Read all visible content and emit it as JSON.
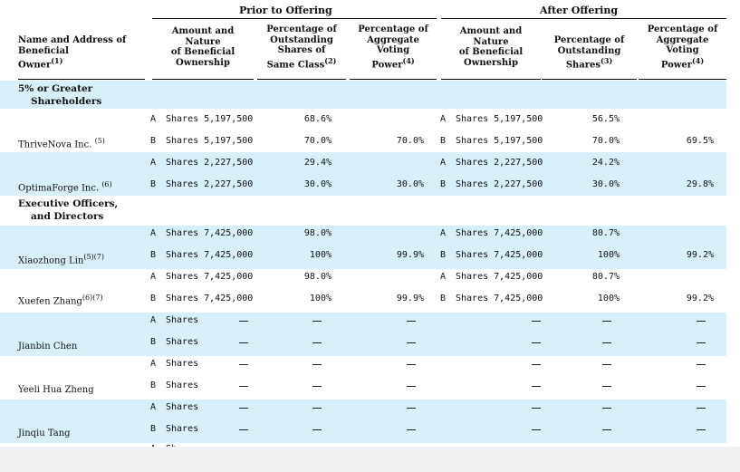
{
  "header": {
    "prior_title": "Prior to Offering",
    "after_title": "After Offering",
    "name_col": [
      "Name and Address of",
      "Beneficial",
      "Owner"
    ],
    "name_sup": "(1)",
    "prior_amount": [
      "Amount and",
      "Nature",
      "of Beneficial",
      "Ownership"
    ],
    "prior_pct_outstanding": [
      "Percentage of",
      "Outstanding",
      "Shares of",
      "Same Class"
    ],
    "prior_pct_outstanding_sup": "(2)",
    "prior_pct_voting": [
      "Percentage of",
      "Aggregate",
      "Voting",
      "Power"
    ],
    "prior_pct_voting_sup": "(4)",
    "after_amount": [
      "Amount and",
      "Nature",
      "of Beneficial",
      "Ownership"
    ],
    "after_pct_outstanding": [
      "Percentage of",
      "Outstanding",
      "Shares"
    ],
    "after_pct_outstanding_sup": "(3)",
    "after_pct_voting": [
      "Percentage of",
      "Aggregate",
      "Voting",
      "Power"
    ],
    "after_pct_voting_sup": "(4)"
  },
  "sections": {
    "greater": [
      "5% or Greater",
      "Shareholders"
    ],
    "officers": [
      "Executive Officers,",
      "and Directors"
    ]
  },
  "holders": [
    {
      "name": "ThriveNova Inc.",
      "sup": "(5)",
      "a": {
        "class": "A",
        "prior_shares": "Shares 5,197,500",
        "prior_pct": "68.6%",
        "prior_vote": "",
        "after_class": "A",
        "after_shares": "Shares 5,197,500",
        "after_pct": "56.5%",
        "after_vote": ""
      },
      "b": {
        "class": "B",
        "prior_shares": "Shares 5,197,500",
        "prior_pct": "70.0%",
        "prior_vote": "70.0%",
        "after_class": "B",
        "after_shares": "Shares 5,197,500",
        "after_pct": "70.0%",
        "after_vote": "69.5%"
      }
    },
    {
      "name": "OptimaForge Inc.",
      "sup": "(6)",
      "a": {
        "class": "A",
        "prior_shares": "Shares 2,227,500",
        "prior_pct": "29.4%",
        "prior_vote": "",
        "after_class": "A",
        "after_shares": "Shares 2,227,500",
        "after_pct": "24.2%",
        "after_vote": ""
      },
      "b": {
        "class": "B",
        "prior_shares": "Shares 2,227,500",
        "prior_pct": "30.0%",
        "prior_vote": "30.0%",
        "after_class": "B",
        "after_shares": "Shares 2,227,500",
        "after_pct": "30.0%",
        "after_vote": "29.8%"
      }
    },
    {
      "name": "Xiaozhong Lin",
      "sup": "(5)(7)",
      "a": {
        "class": "A",
        "prior_shares": "Shares 7,425,000",
        "prior_pct": "98.0%",
        "prior_vote": "",
        "after_class": "A",
        "after_shares": "Shares 7,425,000",
        "after_pct": "80.7%",
        "after_vote": ""
      },
      "b": {
        "class": "B",
        "prior_shares": "Shares 7,425,000",
        "prior_pct": "100%",
        "prior_vote": "99.9%",
        "after_class": "B",
        "after_shares": "Shares 7,425,000",
        "after_pct": "100%",
        "after_vote": "99.2%"
      }
    },
    {
      "name": "Xuefen Zhang",
      "sup": "(6)(7)",
      "a": {
        "class": "A",
        "prior_shares": "Shares 7,425,000",
        "prior_pct": "98.0%",
        "prior_vote": "",
        "after_class": "A",
        "after_shares": "Shares 7,425,000",
        "after_pct": "80.7%",
        "after_vote": ""
      },
      "b": {
        "class": "B",
        "prior_shares": "Shares 7,425,000",
        "prior_pct": "100%",
        "prior_vote": "99.9%",
        "after_class": "B",
        "after_shares": "Shares 7,425,000",
        "after_pct": "100%",
        "after_vote": "99.2%"
      }
    },
    {
      "name": "Jianbin Chen",
      "sup": "",
      "a": {
        "class": "A",
        "prior_shares": "Shares"
      },
      "b": {
        "class": "B",
        "prior_shares": "Shares"
      }
    },
    {
      "name": "Yeeli Hua Zheng",
      "sup": "",
      "a": {
        "class": "A",
        "prior_shares": "Shares"
      },
      "b": {
        "class": "B",
        "prior_shares": "Shares"
      }
    },
    {
      "name": "Jinqiu Tang",
      "sup": "",
      "a": {
        "class": "A",
        "prior_shares": "Shares"
      },
      "b": {
        "class": "B",
        "prior_shares": "Shares"
      }
    }
  ],
  "partial_row": {
    "class": "A",
    "text": "Sh"
  },
  "colors": {
    "shade": "#d7f0fc",
    "footer": "#f1f1f1"
  }
}
